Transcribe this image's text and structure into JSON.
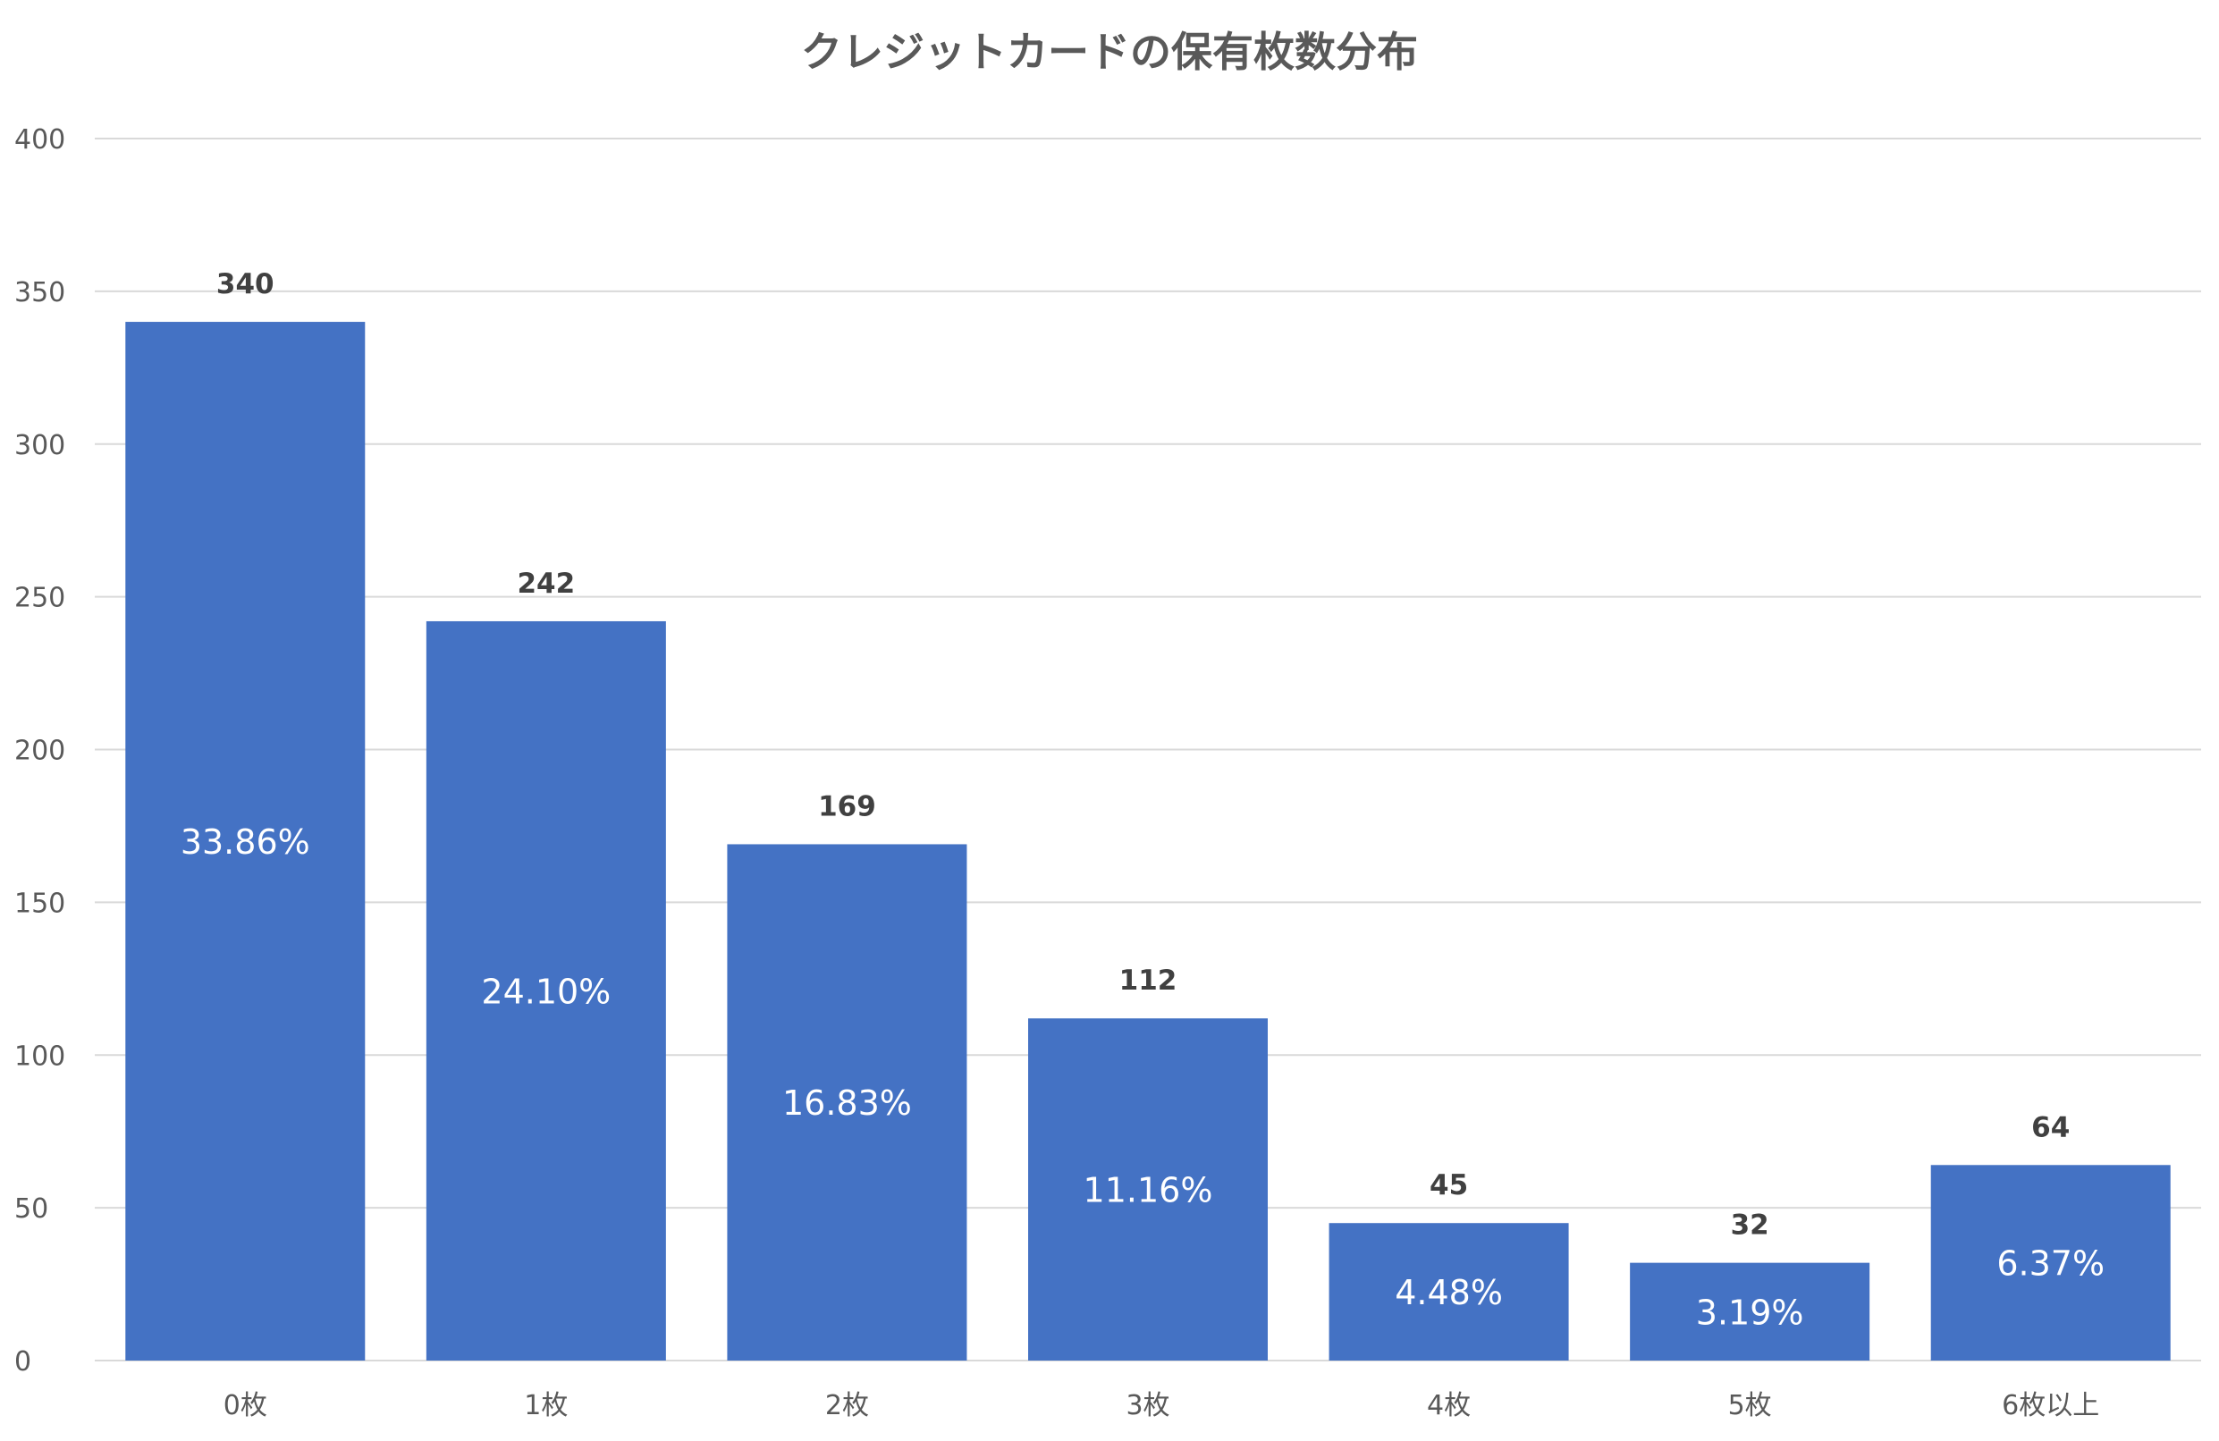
{
  "colors": {
    "bar": "#4472c4",
    "grid": "#d9d9d9",
    "title": "#595959",
    "value_label": "#404040",
    "pct_label": "#ffffff"
  },
  "chart_data": {
    "type": "bar",
    "title": "クレジットカードの保有枚数分布",
    "xlabel": "",
    "ylabel": "",
    "ylim": [
      0,
      400
    ],
    "yticks": [
      0,
      50,
      100,
      150,
      200,
      250,
      300,
      350,
      400
    ],
    "grid": true,
    "legend": "none",
    "categories": [
      "0枚",
      "1枚",
      "2枚",
      "3枚",
      "4枚",
      "5枚",
      "6枚以上"
    ],
    "values": [
      340,
      242,
      169,
      112,
      45,
      32,
      64
    ],
    "value_labels": [
      "340",
      "242",
      "169",
      "112",
      "45",
      "32",
      "64"
    ],
    "percent_labels": [
      "33.86%",
      "24.10%",
      "16.83%",
      "11.16%",
      "4.48%",
      "3.19%",
      "6.37%"
    ]
  }
}
